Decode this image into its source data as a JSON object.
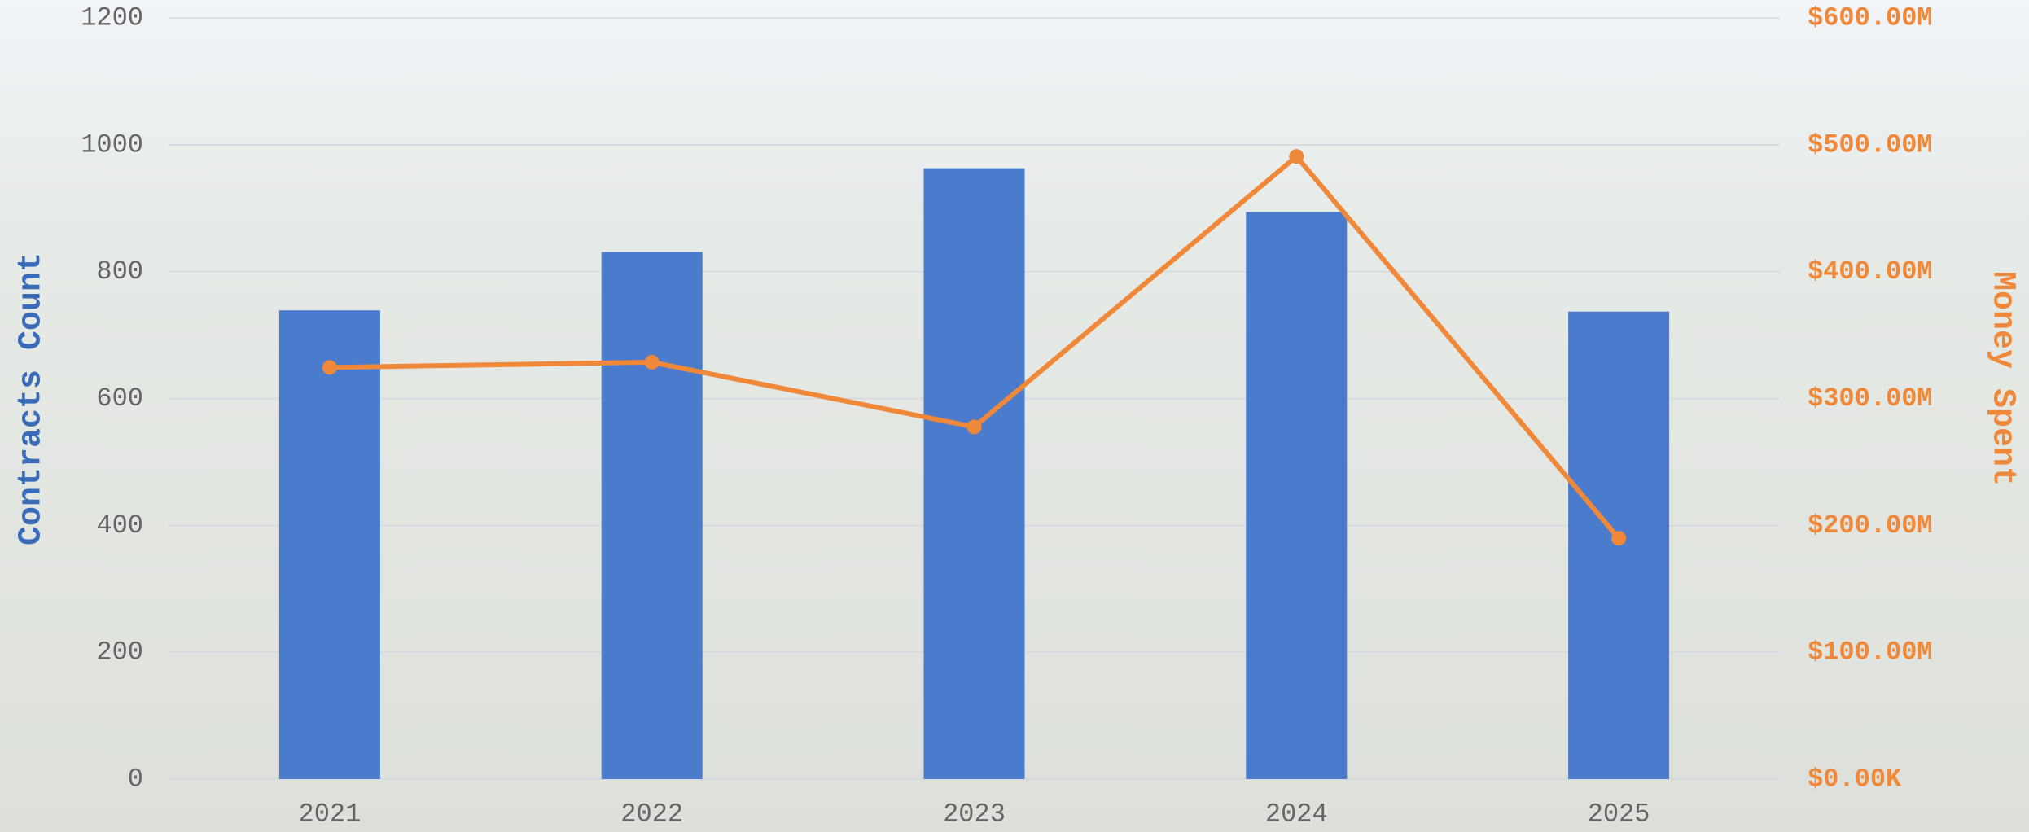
{
  "chart_data": {
    "type": "bar-line",
    "categories": [
      "2021",
      "2022",
      "2023",
      "2024",
      "2025"
    ],
    "series": [
      {
        "name": "Contracts Count",
        "type": "bar",
        "color": "#4a7bcc",
        "values": [
          739,
          831,
          963,
          894,
          737
        ]
      },
      {
        "name": "Money Spent",
        "type": "line",
        "axis": "y2",
        "color": "#f0883a",
        "values": [
          324500000,
          328600000,
          277600000,
          490800000,
          189800000
        ]
      }
    ],
    "ylabel": "Contracts Count",
    "y2label": "Money Spent",
    "ylim": [
      0,
      1200
    ],
    "yticks": [
      0,
      200,
      400,
      600,
      800,
      1000,
      1200
    ],
    "y2lim": [
      0,
      600000000
    ],
    "y2ticks": [
      {
        "value": 0,
        "label": "$0.00K"
      },
      {
        "value": 100000000,
        "label": "$100.00M"
      },
      {
        "value": 200000000,
        "label": "$200.00M"
      },
      {
        "value": 300000000,
        "label": "$300.00M"
      },
      {
        "value": 400000000,
        "label": "$400.00M"
      },
      {
        "value": 500000000,
        "label": "$500.00M"
      },
      {
        "value": 600000000,
        "label": "$600.00M"
      }
    ],
    "grid": true
  }
}
